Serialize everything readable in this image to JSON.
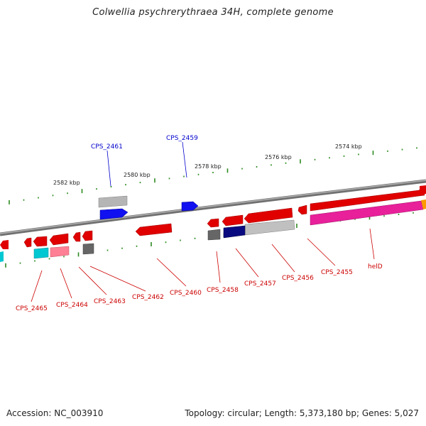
{
  "title": "Colwellia psychrerythraea 34H, complete genome",
  "footer": {
    "accession": "Accession: NC_003910",
    "topology": "Topology: circular; Length: 5,373,180 bp; Genes: 5,027"
  },
  "kbp_ticks": [
    "2582 kbp",
    "2580 kbp",
    "2578 kbp",
    "2576 kbp",
    "2574 kbp"
  ],
  "gene_labels": [
    {
      "text": "CPS_2461",
      "color": "#0000cc"
    },
    {
      "text": "CPS_2459",
      "color": "#0000cc"
    },
    {
      "text": "CPS_2465",
      "color": "#cc0000"
    },
    {
      "text": "CPS_2464",
      "color": "#cc0000"
    },
    {
      "text": "CPS_2463",
      "color": "#cc0000"
    },
    {
      "text": "CPS_2462",
      "color": "#cc0000"
    },
    {
      "text": "CPS_2460",
      "color": "#cc0000"
    },
    {
      "text": "CPS_2458",
      "color": "#cc0000"
    },
    {
      "text": "CPS_2457",
      "color": "#cc0000"
    },
    {
      "text": "CPS_2456",
      "color": "#cc0000"
    },
    {
      "text": "CPS_2455",
      "color": "#cc0000"
    },
    {
      "text": "helD",
      "color": "#cc0000"
    }
  ],
  "colors": {
    "backbone": "#8a8a8a",
    "tick": "#2e8b22",
    "gene_red": "#e00000",
    "gene_blue": "#0000ee",
    "gene_gray": "#b8b8b8",
    "gene_darkgray": "#606060",
    "gene_navy": "#0a0a80",
    "gene_pink": "#ff6e8e",
    "gene_magenta": "#e81e96",
    "gene_cyan": "#00c8d2",
    "gene_orange": "#ff9900"
  }
}
